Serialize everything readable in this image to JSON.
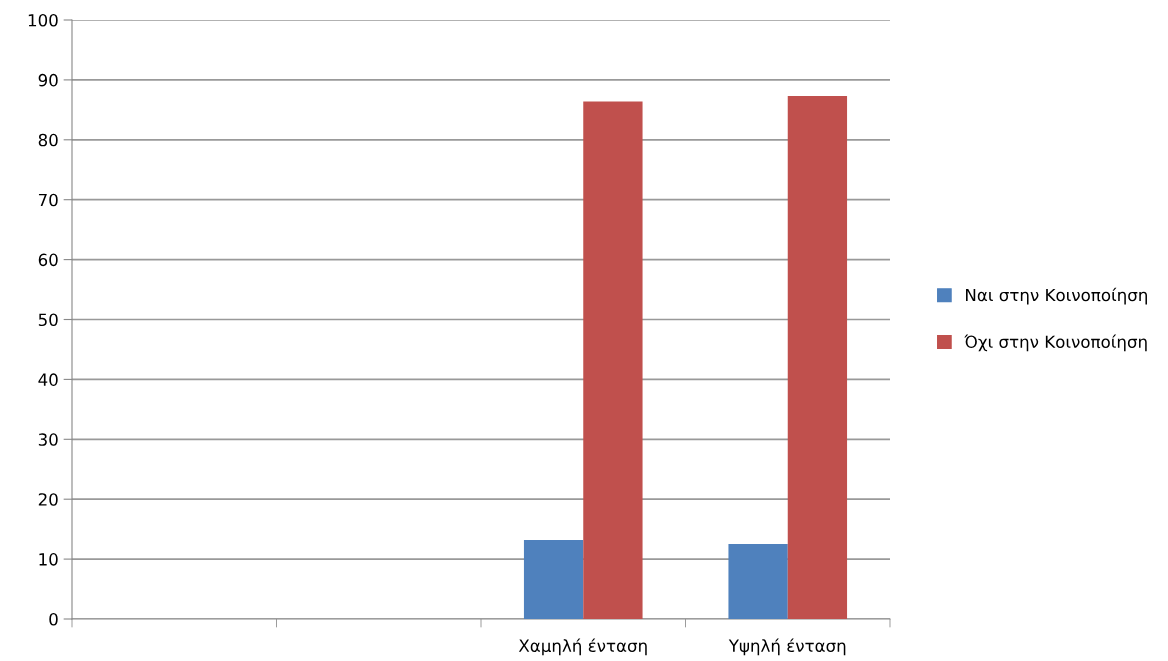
{
  "chart_data": {
    "type": "bar",
    "categories": [
      null,
      null,
      "Χαμηλή ένταση",
      "Υψηλή ένταση"
    ],
    "series": [
      {
        "name": "Ναι στην Κοινοποίηση",
        "color": "#4f81bd",
        "values": [
          null,
          null,
          13.2,
          12.5
        ]
      },
      {
        "name": "Όχι στην Κοινοποίηση",
        "color": "#c0504d",
        "values": [
          null,
          null,
          86.4,
          87.3
        ]
      }
    ],
    "ylim": [
      0,
      100
    ],
    "yticks": [
      0,
      10,
      20,
      30,
      40,
      50,
      60,
      70,
      80,
      90,
      100
    ],
    "grid": "y",
    "legend": "right"
  }
}
